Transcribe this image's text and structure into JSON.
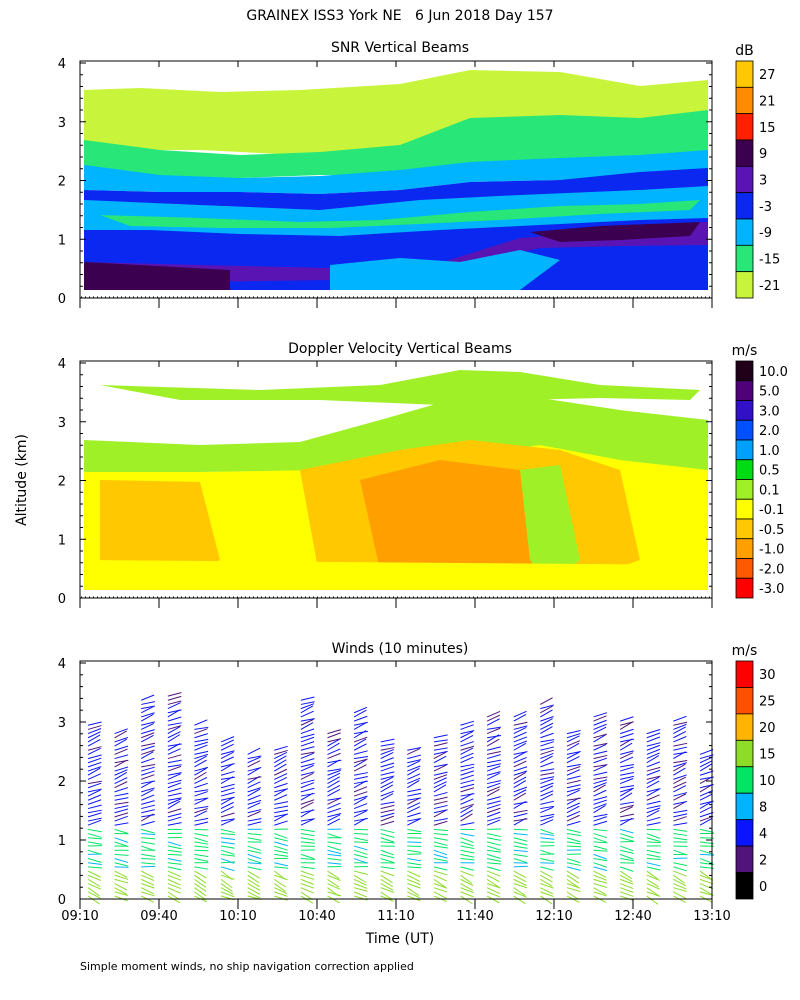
{
  "figure_title": "GRAINEX ISS3 York NE   6 Jun 2018 Day 157",
  "y_axis_label": "Altitude (km)",
  "x_axis_label": "Time (UT)",
  "footnote": "Simple moment winds, no ship navigation correction applied",
  "chart_data": [
    {
      "type": "heatmap",
      "title": "SNR Vertical Beams",
      "ylim": [
        0,
        4
      ],
      "yticks": [
        "0",
        "1",
        "2",
        "3",
        "4"
      ],
      "colorbar_unit": "dB",
      "colorbar_labels": [
        "27",
        "21",
        "15",
        "9",
        "3",
        "-3",
        "-9",
        "-15",
        "-21"
      ],
      "colorbar_colors": [
        "#ffc800",
        "#ff8c00",
        "#ff2000",
        "#3c0050",
        "#5a14b4",
        "#0a28f0",
        "#00b4ff",
        "#28e678",
        "#c8f53c"
      ],
      "layers": [
        {
          "altitude_range": [
            0.1,
            0.6
          ],
          "dominant_snr_db": 9
        },
        {
          "altitude_range": [
            0.6,
            1.6
          ],
          "dominant_snr_db": -3
        },
        {
          "altitude_range": [
            1.6,
            2.2
          ],
          "dominant_snr_db": -9
        },
        {
          "altitude_range": [
            2.2,
            3.6
          ],
          "dominant_snr_db": -18
        }
      ]
    },
    {
      "type": "heatmap",
      "title": "Doppler Velocity Vertical Beams",
      "ylim": [
        0,
        4
      ],
      "yticks": [
        "0",
        "1",
        "2",
        "3",
        "4"
      ],
      "colorbar_unit": "m/s",
      "colorbar_labels": [
        "10.0",
        "5.0",
        "3.0",
        "2.0",
        "1.0",
        "0.5",
        "0.1",
        "-0.1",
        "-0.5",
        "-1.0",
        "-2.0",
        "-3.0"
      ],
      "colorbar_colors": [
        "#200018",
        "#500078",
        "#3210c8",
        "#0050ff",
        "#00a0ff",
        "#00dc14",
        "#a0f028",
        "#ffff00",
        "#ffc800",
        "#ffa000",
        "#ff5a00",
        "#ff0000"
      ],
      "dominant_velocity_range_ms": [
        -1.0,
        0.1
      ]
    },
    {
      "type": "scatter",
      "title": "Winds (10 minutes)",
      "ylim": [
        0,
        4
      ],
      "yticks": [
        "0",
        "1",
        "2",
        "3",
        "4"
      ],
      "x": [
        "09:10",
        "09:40",
        "10:10",
        "10:40",
        "11:10",
        "11:40",
        "12:10",
        "12:40",
        "13:10"
      ],
      "colorbar_unit": "m/s",
      "colorbar_labels": [
        "30",
        "25",
        "20",
        "15",
        "10",
        "8",
        "4",
        "2",
        "0"
      ],
      "colorbar_colors": [
        "#ff0000",
        "#ff5000",
        "#ffb400",
        "#8cdc28",
        "#00e664",
        "#00b4ff",
        "#0a14ff",
        "#50147a",
        "#000000"
      ],
      "profile_count": 24,
      "typical_speed_by_altitude_ms": [
        {
          "altitude_range": [
            0,
            0.5
          ],
          "speed": 18
        },
        {
          "altitude_range": [
            0.5,
            1.2
          ],
          "speed": 11
        },
        {
          "altitude_range": [
            1.2,
            3.5
          ],
          "speed": 5
        }
      ]
    }
  ]
}
